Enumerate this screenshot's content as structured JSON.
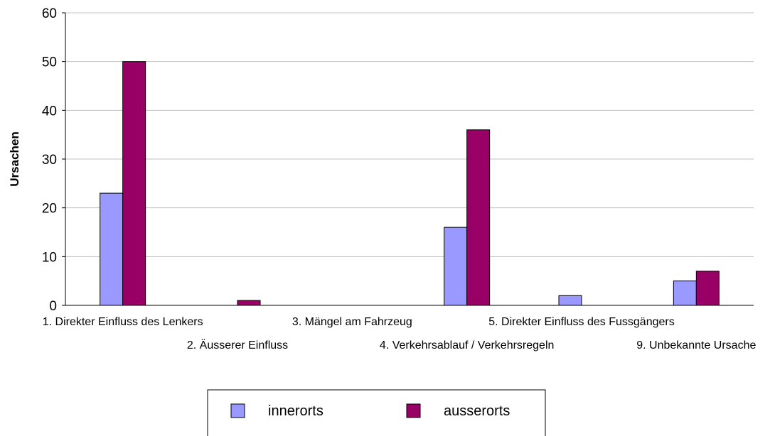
{
  "chart_data": {
    "type": "bar",
    "title": "",
    "xlabel": "",
    "ylabel": "Ursachen",
    "ylim": [
      0,
      60
    ],
    "yticks": [
      0,
      10,
      20,
      30,
      40,
      50,
      60
    ],
    "grid": true,
    "legend_position": "bottom",
    "categories": [
      "1. Direkter Einfluss des Lenkers",
      "2. Äusserer Einfluss",
      "3. Mängel am Fahrzeug",
      "4. Verkehrsablauf / Verkehrsregeln",
      "5. Direkter Einfluss des Fussgängers",
      "9. Unbekannte Ursache"
    ],
    "series": [
      {
        "name": "innerorts",
        "color": "#9999ff",
        "values": [
          23,
          0,
          0,
          16,
          2,
          5
        ]
      },
      {
        "name": "ausserorts",
        "color": "#990066",
        "values": [
          50,
          1,
          0,
          36,
          0,
          7
        ]
      }
    ]
  }
}
